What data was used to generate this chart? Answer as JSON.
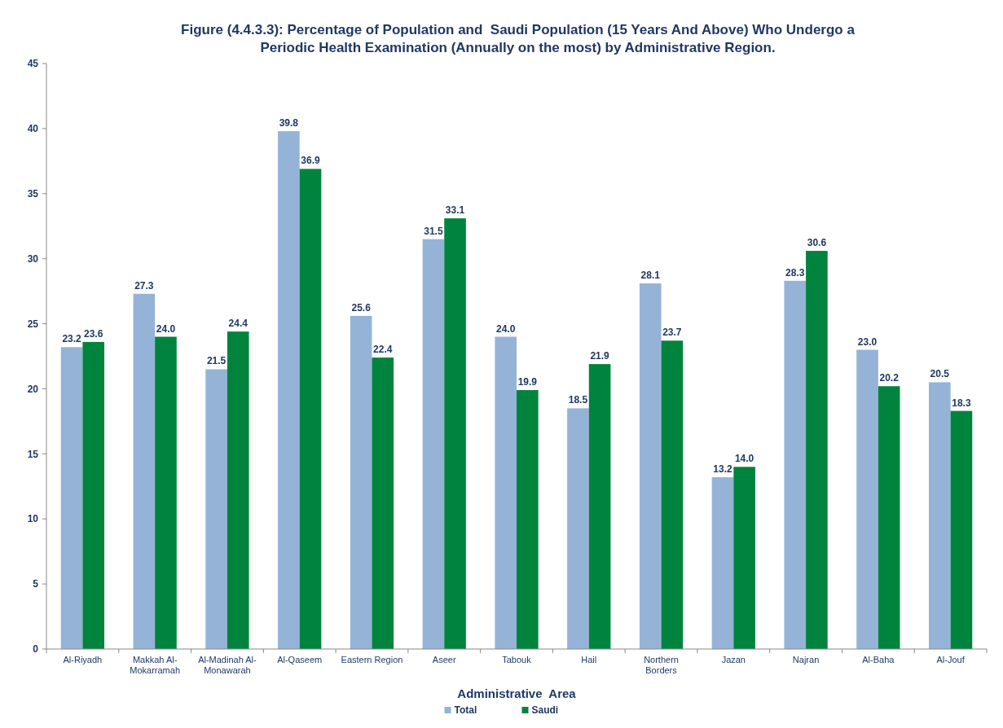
{
  "chart_data": {
    "type": "bar",
    "title": "Figure (4.4.3.3): Percentage of Population and  Saudi Population (15 Years And Above) Who Undergo a Periodic Health Examination (Annually on the most) by Administrative Region.",
    "xlabel": "Administrative  Area",
    "categories": [
      "Al-Riyadh",
      "Makkah Al-Mokarramah",
      "Al-Madinah Al-Monawarah",
      "Al-Qaseem",
      "Eastern Region",
      "Aseer",
      "Tabouk",
      "Hail",
      "Northern Borders",
      "Jazan",
      "Najran",
      "Al-Baha",
      "Al-Jouf"
    ],
    "series": [
      {
        "name": "Total",
        "color": "#95b3d7",
        "values": [
          23.2,
          27.3,
          21.5,
          39.8,
          25.6,
          31.5,
          24.0,
          18.5,
          28.1,
          13.2,
          28.3,
          23.0,
          20.5
        ],
        "value_labels": [
          "23.2",
          "27.3",
          "21.5",
          "39.8",
          "25.6",
          "31.5",
          "24.0",
          "18.5",
          "28.1",
          "13.2",
          "28.3",
          "23.0",
          "20.5"
        ]
      },
      {
        "name": "Saudi",
        "color": "#00843d",
        "values": [
          23.6,
          24.0,
          24.4,
          36.9,
          22.4,
          33.1,
          19.9,
          21.9,
          23.7,
          14.0,
          30.6,
          20.2,
          18.3
        ],
        "value_labels": [
          "23.6",
          "24.0",
          "24.4",
          "36.9",
          "22.4",
          "33.1",
          "19.9",
          "21.9",
          "23.7",
          "14.0",
          "30.6",
          "20.2",
          "18.3"
        ]
      }
    ],
    "ylim": [
      0,
      45
    ],
    "yticks": [
      0,
      5,
      10,
      15,
      20,
      25,
      30,
      35,
      40,
      45
    ],
    "grid": false,
    "legend": "bottom"
  }
}
